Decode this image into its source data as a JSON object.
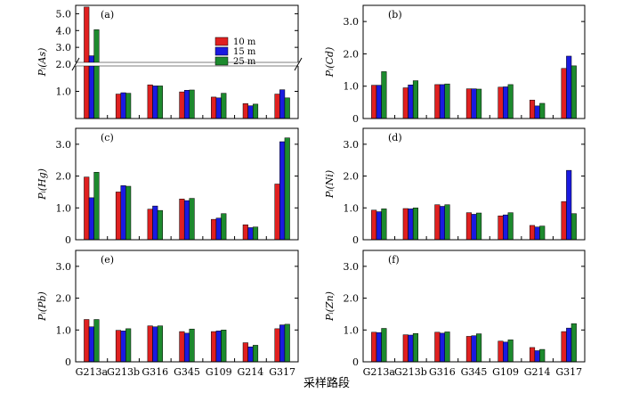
{
  "figure": {
    "xlabel": "采样路段",
    "categories": [
      "G213a",
      "G213b",
      "G316",
      "G345",
      "G109",
      "G214",
      "G317"
    ],
    "legend": [
      "10 m",
      "15 m",
      "25 m"
    ],
    "colors": [
      "#e02020",
      "#1a1ae0",
      "#1d8a2e"
    ]
  },
  "chart_data": [
    {
      "type": "bar",
      "panel": "(a)",
      "ylabel": "Pᵢ(As)",
      "categories": [
        "G213a",
        "G213b",
        "G316",
        "G345",
        "G109",
        "G214",
        "G317"
      ],
      "broken_axis": true,
      "ylim_lower": [
        0,
        2.0
      ],
      "ylim_upper": [
        2.0,
        5.5
      ],
      "yticks": [
        "1.0",
        "2.0",
        "3.0",
        "4.0",
        "5.0"
      ],
      "legend_position": "top-right",
      "series": [
        {
          "name": "10 m",
          "values": [
            5.4,
            0.9,
            1.24,
            0.98,
            0.79,
            0.55,
            0.9
          ]
        },
        {
          "name": "15 m",
          "values": [
            2.5,
            0.95,
            1.2,
            1.04,
            0.76,
            0.47,
            1.06
          ]
        },
        {
          "name": "25 m",
          "values": [
            4.05,
            0.93,
            1.2,
            1.05,
            0.93,
            0.53,
            0.76
          ]
        }
      ]
    },
    {
      "type": "bar",
      "panel": "(b)",
      "ylabel": "Pᵢ(Cd)",
      "categories": [
        "G213a",
        "G213b",
        "G316",
        "G345",
        "G109",
        "G214",
        "G317"
      ],
      "ylim": [
        0,
        3.5
      ],
      "yticks": [
        "0",
        "1.0",
        "2.0",
        "3.0"
      ],
      "series": [
        {
          "name": "10 m",
          "values": [
            1.03,
            0.95,
            1.05,
            0.92,
            0.97,
            0.57,
            1.55
          ]
        },
        {
          "name": "15 m",
          "values": [
            1.03,
            1.04,
            1.05,
            0.92,
            0.98,
            0.39,
            1.93
          ]
        },
        {
          "name": "25 m",
          "values": [
            1.45,
            1.17,
            1.07,
            0.91,
            1.05,
            0.47,
            1.63
          ]
        }
      ]
    },
    {
      "type": "bar",
      "panel": "(c)",
      "ylabel": "Pᵢ(Hg)",
      "categories": [
        "G213a",
        "G213b",
        "G316",
        "G345",
        "G109",
        "G214",
        "G317"
      ],
      "ylim": [
        0,
        3.5
      ],
      "yticks": [
        "0",
        "1.0",
        "2.0",
        "3.0"
      ],
      "series": [
        {
          "name": "10 m",
          "values": [
            1.97,
            1.5,
            0.96,
            1.28,
            0.64,
            0.47,
            1.75
          ]
        },
        {
          "name": "15 m",
          "values": [
            1.32,
            1.7,
            1.06,
            1.23,
            0.68,
            0.38,
            3.08
          ]
        },
        {
          "name": "25 m",
          "values": [
            2.12,
            1.68,
            0.92,
            1.3,
            0.82,
            0.4,
            3.2
          ]
        }
      ]
    },
    {
      "type": "bar",
      "panel": "(d)",
      "ylabel": "Pᵢ(Ni)",
      "categories": [
        "G213a",
        "G213b",
        "G316",
        "G345",
        "G109",
        "G214",
        "G317"
      ],
      "ylim": [
        0,
        3.5
      ],
      "yticks": [
        "0",
        "1.0",
        "2.0",
        "3.0"
      ],
      "series": [
        {
          "name": "10 m",
          "values": [
            0.93,
            0.98,
            1.1,
            0.85,
            0.75,
            0.45,
            1.2
          ]
        },
        {
          "name": "15 m",
          "values": [
            0.88,
            0.97,
            1.05,
            0.8,
            0.78,
            0.4,
            2.18
          ]
        },
        {
          "name": "25 m",
          "values": [
            0.97,
            1.0,
            1.1,
            0.84,
            0.85,
            0.43,
            0.82
          ]
        }
      ]
    },
    {
      "type": "bar",
      "panel": "(e)",
      "ylabel": "Pᵢ(Pb)",
      "categories": [
        "G213a",
        "G213b",
        "G316",
        "G345",
        "G109",
        "G214",
        "G317"
      ],
      "ylim": [
        0,
        3.5
      ],
      "yticks": [
        "0",
        "1.0",
        "2.0",
        "3.0"
      ],
      "series": [
        {
          "name": "10 m",
          "values": [
            1.33,
            0.99,
            1.13,
            0.95,
            0.95,
            0.6,
            1.04
          ]
        },
        {
          "name": "15 m",
          "values": [
            1.1,
            0.97,
            1.1,
            0.9,
            0.97,
            0.47,
            1.16
          ]
        },
        {
          "name": "25 m",
          "values": [
            1.33,
            1.04,
            1.13,
            1.03,
            1.0,
            0.52,
            1.18
          ]
        }
      ]
    },
    {
      "type": "bar",
      "panel": "(f)",
      "ylabel": "Pᵢ(Zn)",
      "categories": [
        "G213a",
        "G213b",
        "G316",
        "G345",
        "G109",
        "G214",
        "G317"
      ],
      "ylim": [
        0,
        3.5
      ],
      "yticks": [
        "0",
        "1.0",
        "2.0",
        "3.0"
      ],
      "series": [
        {
          "name": "10 m",
          "values": [
            0.93,
            0.85,
            0.93,
            0.8,
            0.65,
            0.45,
            0.95
          ]
        },
        {
          "name": "15 m",
          "values": [
            0.92,
            0.84,
            0.9,
            0.82,
            0.62,
            0.35,
            1.06
          ]
        },
        {
          "name": "25 m",
          "values": [
            1.05,
            0.89,
            0.94,
            0.88,
            0.69,
            0.39,
            1.2
          ]
        }
      ]
    }
  ]
}
